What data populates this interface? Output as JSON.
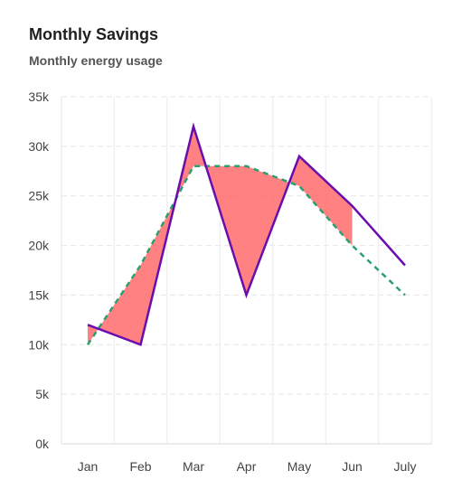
{
  "chart_data": {
    "type": "line",
    "title": "Monthly Savings",
    "subtitle": "Monthly energy usage",
    "categories": [
      "Jan",
      "Feb",
      "Mar",
      "Apr",
      "May",
      "Jun",
      "July"
    ],
    "series": [
      {
        "name": "",
        "style": "solid",
        "color": "#6a0dad",
        "values": [
          12000,
          10000,
          32000,
          15000,
          29000,
          24000,
          18000
        ]
      },
      {
        "name": "",
        "style": "dashed",
        "color": "#2e9e6e",
        "values": [
          10000,
          18000,
          28000,
          28000,
          26000,
          20000,
          15000
        ]
      }
    ],
    "difference_fill": {
      "color": "#ff6b6b",
      "range": [
        "Jan",
        "Jun"
      ]
    },
    "ylim": [
      0,
      35000
    ],
    "yticks": [
      "0k",
      "5k",
      "10k",
      "15k",
      "20k",
      "25k",
      "30k",
      "35k"
    ],
    "grid": true
  }
}
